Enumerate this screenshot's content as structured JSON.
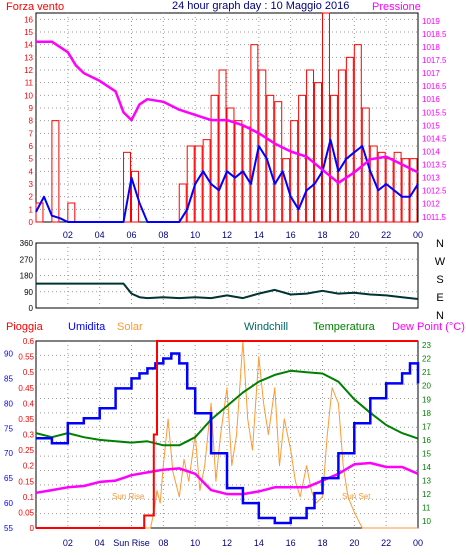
{
  "title": "24 hour graph day : 10 Maggio 2016",
  "x_ticks": [
    "02",
    "04",
    "06",
    "08",
    "10",
    "12",
    "14",
    "16",
    "18",
    "20",
    "22",
    "00"
  ],
  "x_ticks_bottom": [
    "02",
    "04",
    "Sun Rise",
    "08",
    "10",
    "12",
    "14",
    "16",
    "18",
    "20",
    "22",
    "00"
  ],
  "colors": {
    "wind": "#ff0000",
    "gust_line": "#0000ff",
    "pressure": "#ff00ff",
    "direction": "#003333",
    "rain": "#ff0000",
    "humidity": "#0000ff",
    "solar": "#ff9933",
    "temperature": "#008000",
    "dewpoint": "#ff00ff",
    "windchill": "#006666",
    "grid": "#999999"
  },
  "chart_data": [
    {
      "type": "line",
      "title": "24 hour graph day : 10 Maggio 2016",
      "legend_left": "Forza vento",
      "legend_right": "Pressione",
      "xlabel": "",
      "y_left_label": "Forza vento",
      "y_left_ticks": [
        "0",
        "1",
        "2",
        "3",
        "4",
        "5",
        "6",
        "7",
        "8",
        "9",
        "10",
        "11",
        "12",
        "13",
        "14",
        "15",
        "16"
      ],
      "y_left_range": [
        0,
        16.5
      ],
      "y_right_label": "Pressione",
      "y_right_ticks": [
        "1011.5",
        "1012",
        "1012.5",
        "1013",
        "1013.5",
        "1014",
        "1014.5",
        "1015",
        "1015.5",
        "1016",
        "1016.5",
        "1017",
        "1017.5",
        "1018",
        "1018.5",
        "1019"
      ],
      "y_right_range": [
        1011.3,
        1019.3
      ],
      "grid": true,
      "series": [
        {
          "name": "Forza vento",
          "color": "#ff0000",
          "style": "bars",
          "x": [
            0.5,
            1.5,
            2.5,
            3.5,
            4.5,
            5.5,
            6,
            6.5,
            7,
            7.5,
            8,
            8.5,
            9,
            9.5,
            10,
            10.5,
            11,
            11.5,
            12,
            12.5,
            13,
            13.5,
            14,
            14.5,
            15,
            15.5,
            16,
            16.5,
            17,
            17.5,
            18,
            18.5,
            19,
            19.5,
            20,
            20.5,
            21,
            21.5,
            22,
            22.5,
            23,
            23.5,
            24
          ],
          "values": [
            1.5,
            8,
            1.5,
            0,
            0,
            0,
            5.5,
            4,
            0,
            0,
            0,
            0,
            0,
            3,
            6,
            6,
            6.5,
            10,
            12,
            9,
            8,
            7.5,
            14,
            12,
            10,
            9.5,
            5,
            8,
            10,
            12,
            11,
            16.5,
            10,
            12,
            13,
            14,
            9,
            6,
            5.5,
            5,
            5.5,
            5,
            5
          ]
        },
        {
          "color": "#0000ff",
          "x": [
            0,
            0.5,
            1,
            1.5,
            2,
            2.5,
            3,
            3.5,
            4,
            4.5,
            5,
            5.5,
            6,
            6.5,
            7,
            7.5,
            8,
            8.5,
            9,
            9.5,
            10,
            10.5,
            11,
            11.5,
            12,
            12.5,
            13,
            13.5,
            14,
            14.5,
            15,
            15.5,
            16,
            16.5,
            17,
            17.5,
            18,
            18.5,
            19,
            19.5,
            20,
            20.5,
            21,
            21.5,
            22,
            22.5,
            23,
            23.5,
            24
          ],
          "values": [
            0.8,
            2,
            0.5,
            0.3,
            0,
            0,
            0,
            0,
            0,
            0,
            0,
            0,
            3.5,
            1.5,
            0,
            0,
            0,
            0,
            0,
            1,
            3,
            4,
            3,
            2.5,
            4,
            3.5,
            4,
            3,
            6,
            5,
            3,
            4,
            2,
            1,
            2.5,
            3,
            4,
            6.5,
            4,
            5,
            5.5,
            6,
            4,
            2.5,
            3,
            2.5,
            2,
            2,
            3
          ]
        },
        {
          "name": "Pressione",
          "color": "#ff00ff",
          "axis": "right",
          "x": [
            0,
            1,
            2,
            2.5,
            3,
            4,
            5,
            5.5,
            6,
            6.5,
            7,
            8,
            9,
            10,
            11,
            12,
            13,
            14,
            15,
            16,
            17,
            18,
            19,
            20,
            21,
            22,
            23,
            24
          ],
          "values": [
            1018.2,
            1018.2,
            1017.8,
            1017.3,
            1017.0,
            1016.7,
            1016.3,
            1015.5,
            1015.2,
            1015.8,
            1016.0,
            1015.9,
            1015.6,
            1015.4,
            1015.2,
            1015.2,
            1015.0,
            1014.7,
            1014.3,
            1014.0,
            1013.8,
            1013.3,
            1012.8,
            1013.2,
            1013.7,
            1013.8,
            1013.5,
            1013.2
          ]
        }
      ]
    },
    {
      "type": "line",
      "y_labels": [
        "0",
        "90",
        "180",
        "270",
        "360"
      ],
      "y_range": [
        0,
        360
      ],
      "compass": [
        "N",
        "W",
        "S",
        "E",
        "N"
      ],
      "grid": true,
      "series": [
        {
          "color": "#003333",
          "x": [
            0,
            1,
            2,
            3,
            4,
            5,
            5.5,
            6,
            6.5,
            7,
            8,
            9,
            10,
            11,
            12,
            13,
            14,
            15,
            16,
            17,
            18,
            19,
            20,
            21,
            22,
            23,
            24
          ],
          "values": [
            135,
            135,
            135,
            135,
            135,
            135,
            135,
            80,
            60,
            55,
            60,
            55,
            60,
            55,
            70,
            55,
            80,
            100,
            75,
            80,
            95,
            80,
            85,
            75,
            70,
            60,
            50
          ]
        }
      ]
    },
    {
      "type": "line",
      "legend": [
        "Pioggia",
        "Umidita",
        "Solar",
        "Windchill",
        "Temperatura",
        "Dew Point (°C)"
      ],
      "y_rain_ticks": [
        "0",
        "0.05",
        "0.1",
        "0.15",
        "0.2",
        "0.25",
        "0.3",
        "0.35",
        "0.4",
        "0.45",
        "0.5",
        "0.55",
        "0.6"
      ],
      "y_rain_range": [
        0,
        0.6
      ],
      "y_humidity_ticks": [
        "55",
        "60",
        "65",
        "70",
        "75",
        "80",
        "85",
        "90"
      ],
      "y_humidity_range": [
        55,
        92.5
      ],
      "y_temp_ticks": [
        "10",
        "11",
        "12",
        "13",
        "14",
        "15",
        "16",
        "17",
        "18",
        "19",
        "20",
        "21",
        "22",
        "23"
      ],
      "y_temp_range": [
        9.5,
        23.3
      ],
      "annotations": [
        "Sun Rise",
        "Sun Set"
      ],
      "grid": true,
      "series": [
        {
          "name": "Pioggia",
          "color": "#ff0000",
          "x": [
            0,
            6.8,
            6.8,
            7.4,
            7.4,
            7.6,
            7.6,
            8,
            8,
            24
          ],
          "values": [
            0,
            0,
            0.04,
            0.04,
            0.3,
            0.3,
            0.6,
            0.6,
            0.6,
            0.6
          ]
        },
        {
          "name": "Umidita",
          "color": "#0000ff",
          "x": [
            0,
            1,
            2,
            3,
            4,
            5,
            6,
            6.5,
            7,
            7.5,
            8,
            8.5,
            9,
            9.5,
            10,
            11,
            12,
            13,
            14,
            15,
            16,
            17,
            17.5,
            18,
            19,
            20,
            21,
            22,
            23,
            23.5,
            24
          ],
          "values": [
            73,
            72,
            76,
            77,
            79,
            83,
            85,
            86,
            87,
            88,
            89,
            90,
            88,
            83,
            78,
            70,
            63,
            60,
            57,
            56,
            57,
            59,
            62,
            65,
            70,
            76,
            81,
            84,
            86,
            88,
            84
          ]
        },
        {
          "name": "Temperatura",
          "color": "#008000",
          "axis": "temp",
          "x": [
            0,
            1,
            2,
            3,
            4,
            5,
            6,
            7,
            8,
            9,
            10,
            11,
            12,
            13,
            14,
            15,
            16,
            17,
            18,
            19,
            20,
            21,
            22,
            23,
            24
          ],
          "values": [
            16.5,
            16.2,
            16.5,
            16.2,
            16,
            15.9,
            15.8,
            15.9,
            15.6,
            15.6,
            16.2,
            17.5,
            18.5,
            19.5,
            20.3,
            20.8,
            21.1,
            21,
            20.9,
            20.3,
            19,
            18,
            17.1,
            16.5,
            16.1
          ]
        },
        {
          "name": "Dew Point (°C)",
          "color": "#ff00ff",
          "axis": "temp",
          "x": [
            0,
            1,
            2,
            3,
            4,
            5,
            6,
            7,
            8,
            9,
            10,
            11,
            12,
            13,
            14,
            15,
            16,
            17,
            18,
            19,
            20,
            21,
            22,
            23,
            24
          ],
          "values": [
            12.1,
            12.3,
            12.5,
            12.6,
            12.9,
            13.0,
            13.4,
            13.6,
            13.8,
            13.9,
            13.5,
            12.3,
            12,
            12,
            12.2,
            12.5,
            12.5,
            12.5,
            13,
            13.5,
            14.2,
            14.3,
            14,
            14,
            13.5
          ]
        },
        {
          "name": "Solar",
          "color": "#ff9933",
          "axis": "rain",
          "x": [
            0,
            7.2,
            7.4,
            7.6,
            7.8,
            8,
            8.3,
            8.6,
            9,
            9.3,
            9.6,
            10,
            10.3,
            10.6,
            11,
            11.3,
            11.6,
            12,
            12.3,
            12.6,
            13,
            13.3,
            13.6,
            14,
            14.3,
            14.6,
            15,
            15.3,
            15.6,
            16,
            16.3,
            16.6,
            17,
            17.3,
            17.6,
            18,
            18.3,
            18.6,
            19,
            19.3,
            19.6,
            20,
            20.3,
            20.5,
            24
          ],
          "values": [
            0,
            0,
            0.05,
            0.12,
            0.08,
            0.2,
            0.35,
            0.18,
            0.1,
            0.22,
            0.15,
            0.3,
            0.12,
            0.2,
            0.4,
            0.15,
            0.3,
            0.45,
            0.2,
            0.3,
            0.6,
            0.35,
            0.25,
            0.55,
            0.4,
            0.3,
            0.45,
            0.2,
            0.35,
            0.25,
            0.15,
            0.1,
            0.2,
            0.12,
            0.08,
            0.1,
            0.3,
            0.45,
            0.4,
            0.2,
            0.1,
            0.05,
            0.02,
            0,
            0
          ]
        }
      ]
    }
  ]
}
